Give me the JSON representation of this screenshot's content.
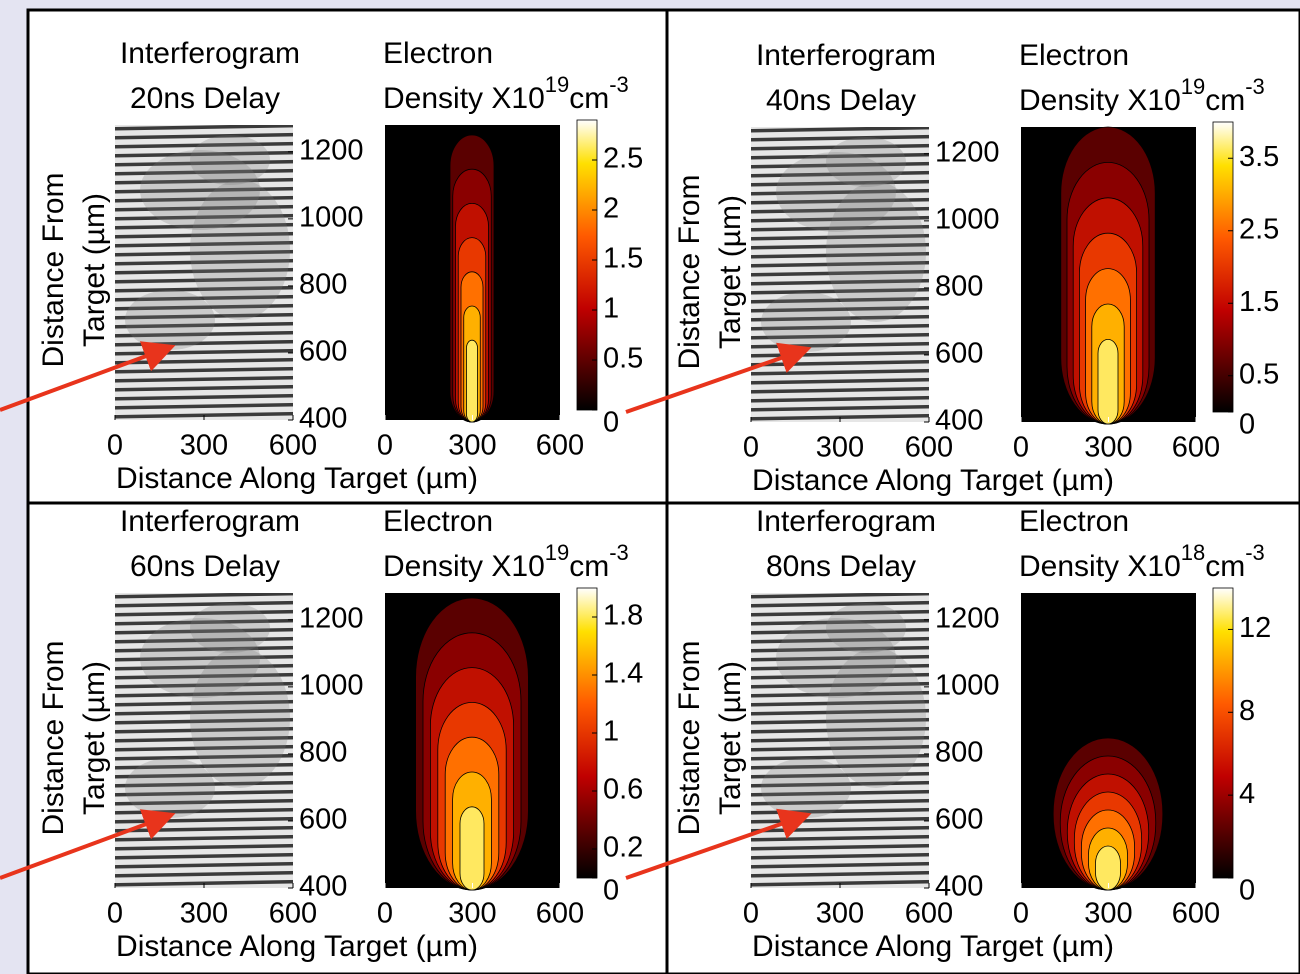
{
  "panels": [
    {
      "interferogram_title": [
        "Interferogram",
        "20ns Delay"
      ],
      "density_title": "Electron",
      "density_label": "Density X10",
      "density_exponent": "19",
      "density_unit": "cm",
      "unit_exponent": "-3",
      "y_axis_label": [
        "Distance From",
        "Target (µm)"
      ],
      "x_axis_label": "Distance Along Target (µm)",
      "ylim": [
        400,
        1280
      ],
      "yticks": [
        400,
        600,
        800,
        1000,
        1200
      ],
      "xlim": [
        0,
        600
      ],
      "xticks": [
        0,
        300,
        600
      ],
      "colorbar_lim": [
        0,
        2.9
      ],
      "colorbar_ticks": [
        0,
        0.5,
        1,
        1.5,
        2,
        2.5
      ]
    },
    {
      "interferogram_title": [
        "Interferogram",
        "40ns Delay"
      ],
      "density_title": "Electron",
      "density_label": "Density X10",
      "density_exponent": "19",
      "density_unit": "cm",
      "unit_exponent": "-3",
      "y_axis_label": [
        "Distance From",
        "Target (µm)"
      ],
      "x_axis_label": "Distance Along Target (µm)",
      "ylim": [
        400,
        1280
      ],
      "yticks": [
        400,
        600,
        800,
        1000,
        1200
      ],
      "xlim": [
        0,
        600
      ],
      "xticks": [
        0,
        300,
        600
      ],
      "colorbar_lim": [
        0,
        4
      ],
      "colorbar_ticks": [
        0,
        0.5,
        1.5,
        2.5,
        3.5
      ]
    },
    {
      "interferogram_title": [
        "Interferogram",
        "60ns Delay"
      ],
      "density_title": "Electron",
      "density_label": "Density X10",
      "density_exponent": "19",
      "density_unit": "cm",
      "unit_exponent": "-3",
      "y_axis_label": [
        "Distance From",
        "Target (µm)"
      ],
      "x_axis_label": "Distance Along Target (µm)",
      "ylim": [
        400,
        1280
      ],
      "yticks": [
        400,
        600,
        800,
        1000,
        1200
      ],
      "xlim": [
        0,
        600
      ],
      "xticks": [
        0,
        300,
        600
      ],
      "colorbar_lim": [
        0,
        2
      ],
      "colorbar_ticks": [
        0,
        0.2,
        0.6,
        1,
        1.4,
        1.8
      ]
    },
    {
      "interferogram_title": [
        "Interferogram",
        "80ns Delay"
      ],
      "density_title": "Electron",
      "density_label": "Density X10",
      "density_exponent": "18",
      "density_unit": "cm",
      "unit_exponent": "-3",
      "y_axis_label": [
        "Distance From",
        "Target (µm)"
      ],
      "x_axis_label": "Distance Along Target (µm)",
      "ylim": [
        400,
        1280
      ],
      "yticks": [
        400,
        600,
        800,
        1000,
        1200
      ],
      "xlim": [
        0,
        600
      ],
      "xticks": [
        0,
        300,
        600
      ],
      "colorbar_lim": [
        0,
        14
      ],
      "colorbar_ticks": [
        0,
        4,
        8,
        12
      ]
    }
  ]
}
